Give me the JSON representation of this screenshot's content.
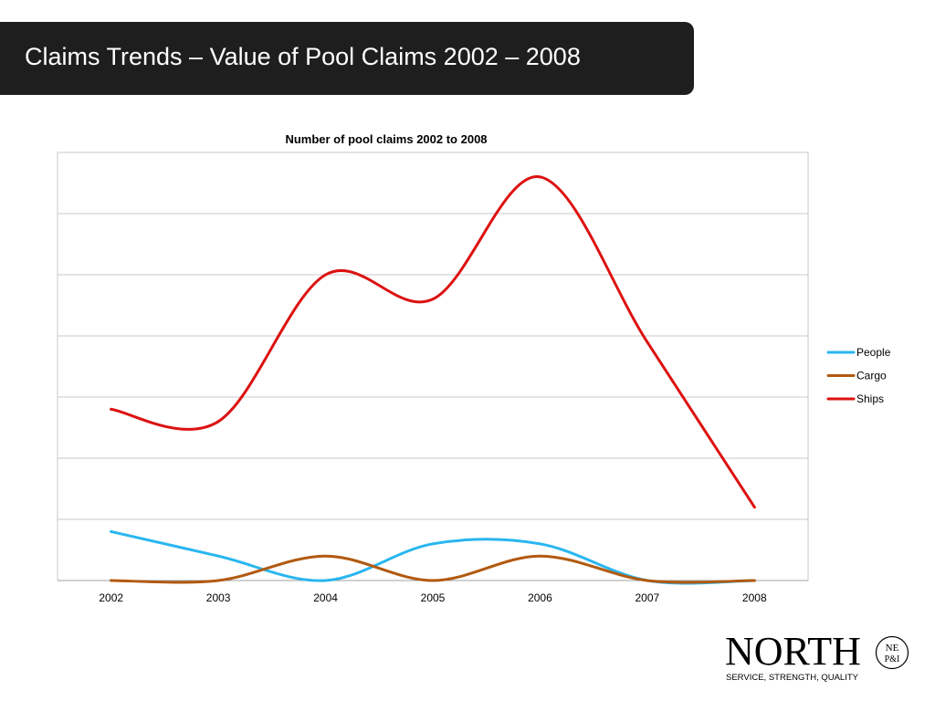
{
  "slide": {
    "title": "Claims Trends – Value of Pool Claims 2002 – 2008"
  },
  "chart_data": {
    "type": "line",
    "title": "Number of pool claims 2002 to 2008",
    "xlabel": "",
    "ylabel": "",
    "categories": [
      "2002",
      "2003",
      "2004",
      "2005",
      "2006",
      "2007",
      "2008"
    ],
    "ylim": [
      0,
      7
    ],
    "grid": true,
    "smooth": true,
    "legend_position": "right",
    "series": [
      {
        "name": "People",
        "color": "#29b6f0",
        "values": [
          0.8,
          0.4,
          0.0,
          0.6,
          0.6,
          0.0,
          0.0
        ]
      },
      {
        "name": "Cargo",
        "color": "#b25a10",
        "values": [
          0.0,
          0.0,
          0.4,
          0.0,
          0.4,
          0.0,
          0.0
        ]
      },
      {
        "name": "Ships",
        "color": "#dd1111",
        "values": [
          2.8,
          2.6,
          5.0,
          4.6,
          6.6,
          3.9,
          1.2
        ]
      }
    ]
  },
  "logo": {
    "word": "NORTH",
    "tagline": "SERVICE, STRENGTH, QUALITY",
    "seal_text": "NE P&I"
  }
}
